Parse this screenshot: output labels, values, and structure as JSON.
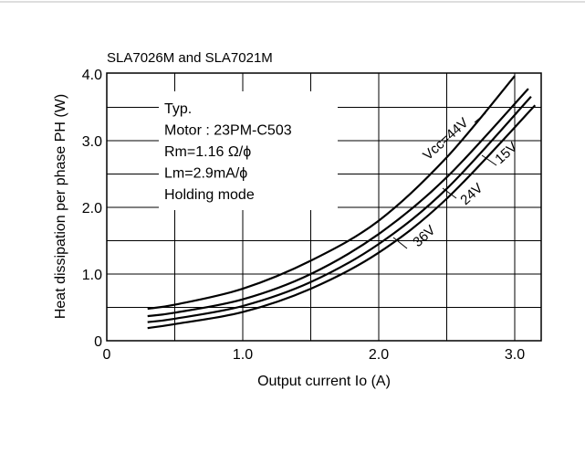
{
  "chart_data": {
    "type": "line",
    "title": "SLA7026M and SLA7021M",
    "xlabel": "Output current Io (A)",
    "ylabel": "Heat dissipation per phase PH (W)",
    "xlim": [
      0,
      3.2
    ],
    "ylim": [
      0,
      4.0
    ],
    "xticks": [
      "0",
      "1.0",
      "2.0",
      "3.0"
    ],
    "yticks": [
      "0",
      "1.0",
      "2.0",
      "3.0",
      "4.0"
    ],
    "grid": true,
    "annotation": [
      "Typ.",
      "Motor : 23PM-C503",
      "Rm=1.16 Ω/ϕ",
      "Lm=2.9mA/ϕ",
      "Holding mode"
    ],
    "series": [
      {
        "name": "VCC=44V",
        "label": "Vcc=44V",
        "x": [
          0.3,
          0.5,
          1.0,
          1.5,
          2.0,
          2.5,
          3.0
        ],
        "y": [
          0.48,
          0.54,
          0.78,
          1.2,
          1.8,
          2.75,
          3.97
        ]
      },
      {
        "name": "36V",
        "label": "36V",
        "x": [
          0.3,
          0.5,
          1.0,
          1.5,
          2.0,
          2.5,
          3.1
        ],
        "y": [
          0.37,
          0.42,
          0.62,
          1.0,
          1.6,
          2.45,
          3.78
        ]
      },
      {
        "name": "24V",
        "label": "24V",
        "x": [
          0.3,
          0.5,
          1.0,
          1.5,
          2.0,
          2.5,
          3.12
        ],
        "y": [
          0.28,
          0.33,
          0.52,
          0.88,
          1.45,
          2.28,
          3.66
        ]
      },
      {
        "name": "15V",
        "label": "15V",
        "x": [
          0.3,
          0.5,
          1.0,
          1.5,
          2.0,
          2.5,
          3.15
        ],
        "y": [
          0.19,
          0.25,
          0.43,
          0.78,
          1.32,
          2.13,
          3.53
        ]
      }
    ]
  }
}
